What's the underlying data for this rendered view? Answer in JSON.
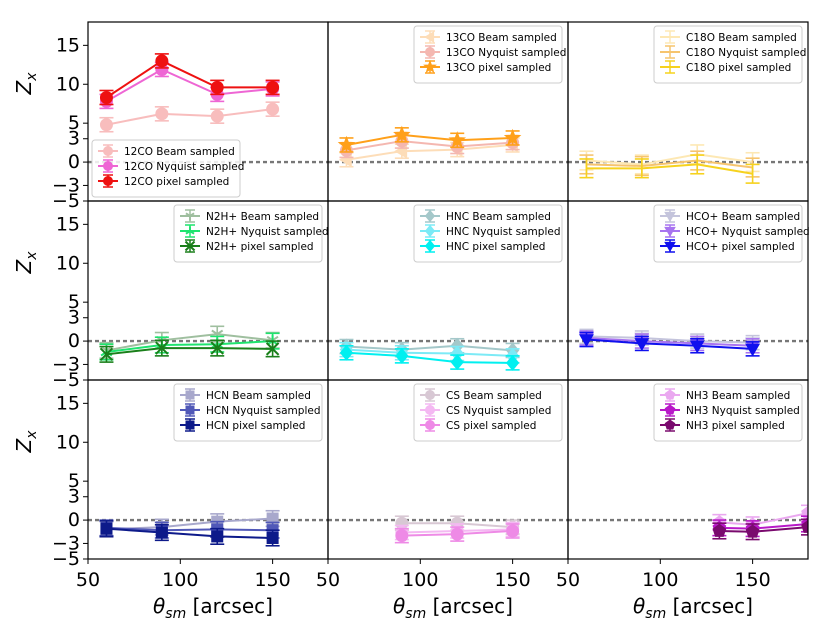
{
  "chart_data": {
    "type": "line",
    "layout": "3x3 grid of subplots",
    "xlabel": "θsm [arcsec]",
    "ylabel": "Zx",
    "xlim": [
      50,
      180
    ],
    "ylim": [
      -5,
      18
    ],
    "xticks": [
      50,
      100,
      150
    ],
    "yticks": [
      -5,
      -3,
      0,
      3,
      5,
      10,
      15
    ],
    "reference_line_y": 0,
    "panels": [
      {
        "legend_position": "lower-left",
        "series": [
          {
            "name": "12CO Beam sampled",
            "color": "#f8bdbd",
            "marker": "circle",
            "x": [
              60,
              90,
              120,
              150
            ],
            "y": [
              4.8,
              6.2,
              5.9,
              6.8
            ],
            "err": [
              0.9,
              0.9,
              0.9,
              0.9
            ]
          },
          {
            "name": "12CO Nyquist sampled",
            "color": "#ee66d4",
            "marker": "circle",
            "x": [
              60,
              90,
              120,
              150
            ],
            "y": [
              7.8,
              11.9,
              8.7,
              9.4
            ],
            "err": [
              0.9,
              0.9,
              0.9,
              0.9
            ]
          },
          {
            "name": "12CO pixel sampled",
            "color": "#ee1111",
            "marker": "circle",
            "x": [
              60,
              90,
              120,
              150
            ],
            "y": [
              8.3,
              13.0,
              9.6,
              9.6
            ],
            "err": [
              0.9,
              0.9,
              0.9,
              0.9
            ]
          }
        ]
      },
      {
        "legend_position": "top-right",
        "series": [
          {
            "name": "13CO Beam sampled",
            "color": "#fdddb8",
            "marker": "triangle-left",
            "x": [
              60,
              90,
              120,
              150
            ],
            "y": [
              0.3,
              1.4,
              1.6,
              2.2
            ],
            "err": [
              0.9,
              0.9,
              0.9,
              0.9
            ]
          },
          {
            "name": "13CO Nyquist sampled",
            "color": "#f4b7b0",
            "marker": "circle",
            "x": [
              60,
              90,
              120,
              150
            ],
            "y": [
              1.5,
              2.7,
              2.0,
              2.5
            ],
            "err": [
              0.9,
              0.9,
              0.9,
              0.9
            ]
          },
          {
            "name": "13CO pixel sampled",
            "color": "#ffa01a",
            "marker": "star",
            "x": [
              60,
              90,
              120,
              150
            ],
            "y": [
              2.2,
              3.5,
              2.8,
              3.1
            ],
            "err": [
              0.9,
              0.9,
              0.9,
              0.9
            ]
          }
        ]
      },
      {
        "legend_position": "top-right",
        "series": [
          {
            "name": "C18O Beam sampled",
            "color": "#fde8b4",
            "marker": "none",
            "x": [
              60,
              90,
              120,
              150
            ],
            "y": [
              0.2,
              -0.3,
              1.0,
              0.0
            ],
            "err": [
              1.2,
              1.2,
              1.2,
              1.2
            ]
          },
          {
            "name": "C18O Nyquist sampled",
            "color": "#f6c46e",
            "marker": "none",
            "x": [
              60,
              90,
              120,
              150
            ],
            "y": [
              -0.3,
              -0.5,
              0.2,
              -0.7
            ],
            "err": [
              1.2,
              1.2,
              1.2,
              1.2
            ]
          },
          {
            "name": "C18O pixel sampled",
            "color": "#f6d21e",
            "marker": "none",
            "x": [
              60,
              90,
              120,
              150
            ],
            "y": [
              -0.8,
              -0.8,
              -0.3,
              -1.5
            ],
            "err": [
              1.2,
              1.2,
              1.2,
              1.2
            ]
          }
        ]
      },
      {
        "legend_position": "top-right",
        "series": [
          {
            "name": "N2H+ Beam sampled",
            "color": "#9fbf9f",
            "marker": "tri-down",
            "x": [
              60,
              90,
              120,
              150
            ],
            "y": [
              -1.2,
              0.1,
              0.9,
              0.1
            ],
            "err": [
              1.0,
              1.0,
              1.0,
              1.0
            ]
          },
          {
            "name": "N2H+ Nyquist sampled",
            "color": "#1ee46e",
            "marker": "tri-up",
            "x": [
              60,
              90,
              120,
              150
            ],
            "y": [
              -1.4,
              -0.5,
              -0.4,
              0.0
            ],
            "err": [
              1.0,
              1.0,
              1.0,
              1.0
            ]
          },
          {
            "name": "N2H+ pixel sampled",
            "color": "#1a7f1a",
            "marker": "x",
            "x": [
              60,
              90,
              120,
              150
            ],
            "y": [
              -1.7,
              -0.9,
              -0.9,
              -1.0
            ],
            "err": [
              1.0,
              1.0,
              1.0,
              1.0
            ]
          }
        ]
      },
      {
        "legend_position": "top-right",
        "series": [
          {
            "name": "HNC Beam sampled",
            "color": "#a4c8ca",
            "marker": "diamond",
            "x": [
              60,
              90,
              120,
              150
            ],
            "y": [
              -0.7,
              -1.1,
              -0.6,
              -1.2
            ],
            "err": [
              0.9,
              0.9,
              0.9,
              0.9
            ]
          },
          {
            "name": "HNC Nyquist sampled",
            "color": "#7ceaf6",
            "marker": "diamond",
            "x": [
              60,
              90,
              120,
              150
            ],
            "y": [
              -1.1,
              -1.5,
              -1.6,
              -1.9
            ],
            "err": [
              0.9,
              0.9,
              0.9,
              0.9
            ]
          },
          {
            "name": "HNC pixel sampled",
            "color": "#00f0f0",
            "marker": "diamond",
            "x": [
              60,
              90,
              120,
              150
            ],
            "y": [
              -1.5,
              -1.9,
              -2.7,
              -2.8
            ],
            "err": [
              0.9,
              0.9,
              0.9,
              0.9
            ]
          }
        ]
      },
      {
        "legend_position": "top-right",
        "series": [
          {
            "name": "HCO+ Beam sampled",
            "color": "#c4c4dc",
            "marker": "triangle-down",
            "x": [
              60,
              90,
              120,
              150
            ],
            "y": [
              0.6,
              0.4,
              0.0,
              -0.2
            ],
            "err": [
              0.9,
              0.9,
              0.9,
              0.9
            ]
          },
          {
            "name": "HCO+ Nyquist sampled",
            "color": "#a874f0",
            "marker": "triangle-down",
            "x": [
              60,
              90,
              120,
              150
            ],
            "y": [
              0.4,
              0.0,
              -0.3,
              -0.6
            ],
            "err": [
              0.9,
              0.9,
              0.9,
              0.9
            ]
          },
          {
            "name": "HCO+ pixel sampled",
            "color": "#1010ee",
            "marker": "triangle-down",
            "x": [
              60,
              90,
              120,
              150
            ],
            "y": [
              0.2,
              -0.3,
              -0.6,
              -1.0
            ],
            "err": [
              0.9,
              0.9,
              0.9,
              0.9
            ]
          }
        ]
      },
      {
        "legend_position": "top-right",
        "series": [
          {
            "name": "HCN Beam sampled",
            "color": "#a8a8cc",
            "marker": "square",
            "x": [
              60,
              90,
              120,
              150
            ],
            "y": [
              -1.2,
              -0.9,
              -0.2,
              0.2
            ],
            "err": [
              1.0,
              1.0,
              1.0,
              1.0
            ]
          },
          {
            "name": "HCN Nyquist sampled",
            "color": "#5058b8",
            "marker": "square",
            "x": [
              60,
              90,
              120,
              150
            ],
            "y": [
              -1.0,
              -1.3,
              -1.2,
              -1.3
            ],
            "err": [
              1.0,
              1.0,
              1.0,
              1.0
            ]
          },
          {
            "name": "HCN pixel sampled",
            "color": "#0d1a8a",
            "marker": "square",
            "x": [
              60,
              90,
              120,
              150
            ],
            "y": [
              -1.1,
              -1.6,
              -2.1,
              -2.3
            ],
            "err": [
              1.0,
              1.0,
              1.0,
              1.0
            ]
          }
        ]
      },
      {
        "legend_position": "top-right",
        "series": [
          {
            "name": "CS Beam sampled",
            "color": "#d8c8d4",
            "marker": "circle",
            "x": [
              90,
              120,
              150
            ],
            "y": [
              -0.4,
              -0.4,
              -0.9
            ],
            "err": [
              0.9,
              0.9,
              0.9
            ]
          },
          {
            "name": "CS Nyquist sampled",
            "color": "#f4b8f2",
            "marker": "circle",
            "x": [
              90,
              120,
              150
            ],
            "y": [
              -1.6,
              -1.4,
              -1.2
            ],
            "err": [
              0.9,
              0.9,
              0.9
            ]
          },
          {
            "name": "CS pixel sampled",
            "color": "#ee8ae6",
            "marker": "circle",
            "x": [
              90,
              120,
              150
            ],
            "y": [
              -2.0,
              -1.8,
              -1.4
            ],
            "err": [
              0.9,
              0.9,
              0.9
            ]
          }
        ]
      },
      {
        "legend_position": "top-right",
        "series": [
          {
            "name": "NH3 Beam sampled",
            "color": "#eaa8f0",
            "marker": "pentagon",
            "x": [
              132,
              150,
              180
            ],
            "y": [
              -0.3,
              -0.6,
              0.9
            ],
            "err": [
              1.0,
              1.0,
              1.0
            ]
          },
          {
            "name": "NH3 Nyquist sampled",
            "color": "#b818c8",
            "marker": "pentagon",
            "x": [
              132,
              150,
              180
            ],
            "y": [
              -1.0,
              -1.1,
              -0.5
            ],
            "err": [
              1.0,
              1.0,
              1.0
            ]
          },
          {
            "name": "NH3 pixel sampled",
            "color": "#7a0a6e",
            "marker": "pentagon",
            "x": [
              132,
              150,
              180
            ],
            "y": [
              -1.4,
              -1.5,
              -0.9
            ],
            "err": [
              1.0,
              1.0,
              1.0
            ]
          }
        ]
      }
    ]
  }
}
